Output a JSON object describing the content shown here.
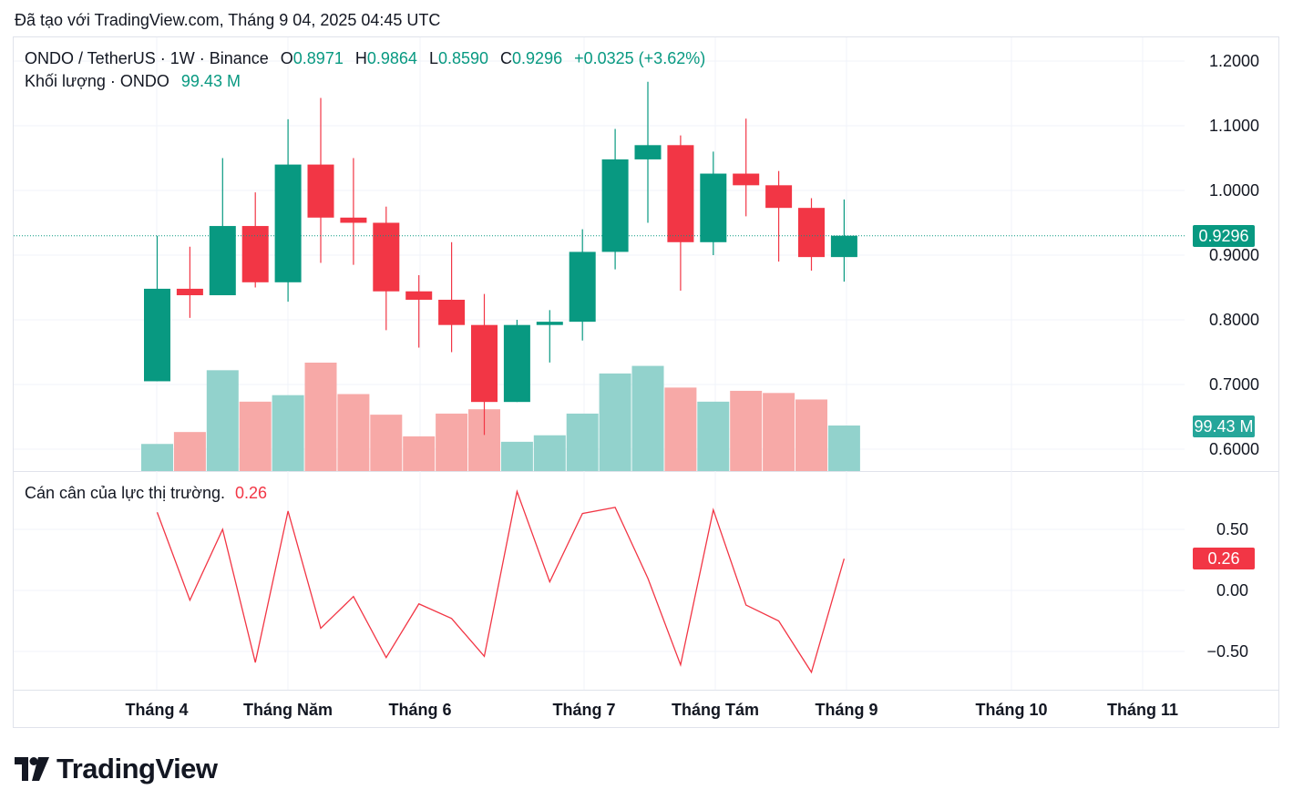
{
  "caption": "Đã tạo với TradingView.com, Tháng 9 04, 2025 04:45 UTC",
  "legend": {
    "symbol": "ONDO / TetherUS · 1W · Binance",
    "o_label": "O",
    "o_value": "0.8971",
    "h_label": "H",
    "h_value": "0.9864",
    "l_label": "L",
    "l_value": "0.8590",
    "c_label": "C",
    "c_value": "0.9296",
    "change": "+0.0325 (+3.62%)",
    "volume_label": "Khối lượng · ONDO",
    "volume_value": "99.43 M",
    "indicator_label": "Cán cân của lực thị trường.",
    "indicator_value": "0.26"
  },
  "tags": {
    "price": "0.9296",
    "volume": "99.43 M",
    "indicator": "0.26"
  },
  "colors": {
    "up": "#089981",
    "down": "#f23645",
    "vol_up": "#92d2cc",
    "vol_down": "#f7a9a7",
    "line": "#f23645",
    "grid": "#f0f3fa",
    "axis_text": "#131722"
  },
  "logo": {
    "text": "TradingView"
  },
  "chart_data": {
    "type": "candlestick",
    "title": "ONDO / TetherUS · 1W · Binance",
    "price_axis": {
      "ticks": [
        "1.2000",
        "1.1000",
        "1.0000",
        "0.9000",
        "0.8000",
        "0.7000",
        "0.6000"
      ],
      "range": [
        0.565,
        1.23
      ]
    },
    "indicator_axis": {
      "ticks": [
        "0.50",
        "0.00",
        "−0.50"
      ],
      "range": [
        -0.84,
        0.95
      ]
    },
    "time_axis": [
      "Tháng 4",
      "Tháng Năm",
      "Tháng 6",
      "Tháng 7",
      "Tháng Tám",
      "Tháng 9",
      "Tháng 10",
      "Tháng 11"
    ],
    "candles": [
      {
        "o": 0.705,
        "h": 0.93,
        "l": 0.705,
        "c": 0.848
      },
      {
        "o": 0.848,
        "h": 0.913,
        "l": 0.803,
        "c": 0.838
      },
      {
        "o": 0.838,
        "h": 1.05,
        "l": 0.838,
        "c": 0.945
      },
      {
        "o": 0.945,
        "h": 0.997,
        "l": 0.85,
        "c": 0.858
      },
      {
        "o": 0.858,
        "h": 1.11,
        "l": 0.828,
        "c": 1.04
      },
      {
        "o": 1.04,
        "h": 1.143,
        "l": 0.888,
        "c": 0.958
      },
      {
        "o": 0.958,
        "h": 1.05,
        "l": 0.885,
        "c": 0.95
      },
      {
        "o": 0.95,
        "h": 0.975,
        "l": 0.784,
        "c": 0.844
      },
      {
        "o": 0.844,
        "h": 0.869,
        "l": 0.757,
        "c": 0.831
      },
      {
        "o": 0.831,
        "h": 0.92,
        "l": 0.75,
        "c": 0.792
      },
      {
        "o": 0.792,
        "h": 0.84,
        "l": 0.622,
        "c": 0.673
      },
      {
        "o": 0.673,
        "h": 0.8,
        "l": 0.673,
        "c": 0.792
      },
      {
        "o": 0.792,
        "h": 0.815,
        "l": 0.734,
        "c": 0.797
      },
      {
        "o": 0.797,
        "h": 0.94,
        "l": 0.768,
        "c": 0.905
      },
      {
        "o": 0.905,
        "h": 1.095,
        "l": 0.878,
        "c": 1.048
      },
      {
        "o": 1.048,
        "h": 1.168,
        "l": 0.95,
        "c": 1.07
      },
      {
        "o": 1.07,
        "h": 1.085,
        "l": 0.845,
        "c": 0.92
      },
      {
        "o": 0.92,
        "h": 1.06,
        "l": 0.9,
        "c": 1.026
      },
      {
        "o": 1.026,
        "h": 1.111,
        "l": 0.96,
        "c": 1.008
      },
      {
        "o": 1.008,
        "h": 1.03,
        "l": 0.89,
        "c": 0.973
      },
      {
        "o": 0.973,
        "h": 0.988,
        "l": 0.876,
        "c": 0.897
      },
      {
        "o": 0.897,
        "h": 0.986,
        "l": 0.859,
        "c": 0.93
      }
    ],
    "volume_levels": [
      0.25,
      0.36,
      0.93,
      0.64,
      0.7,
      1.0,
      0.71,
      0.52,
      0.32,
      0.53,
      0.57,
      0.27,
      0.33,
      0.53,
      0.9,
      0.97,
      0.77,
      0.64,
      0.74,
      0.72,
      0.66,
      0.42
    ],
    "indicator_values": [
      0.64,
      -0.08,
      0.5,
      -0.59,
      0.65,
      -0.31,
      -0.05,
      -0.55,
      -0.11,
      -0.23,
      -0.54,
      0.81,
      0.07,
      0.63,
      0.68,
      0.1,
      -0.61,
      0.66,
      -0.12,
      -0.25,
      -0.67,
      0.26
    ]
  }
}
